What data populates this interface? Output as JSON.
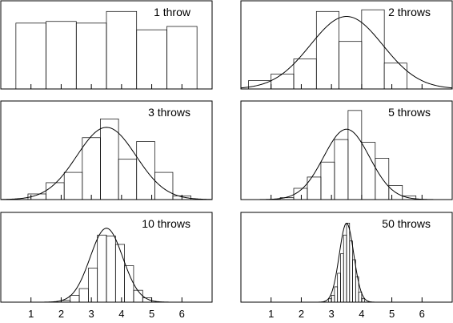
{
  "chart_data": [
    {
      "type": "bar",
      "title": "1 throw",
      "x_range": [
        0,
        7
      ],
      "bin_edges": [
        0.5,
        1.5,
        2.5,
        3.5,
        4.5,
        5.5,
        6.5
      ],
      "values": [
        0.79,
        0.81,
        0.79,
        0.93,
        0.71,
        0.75
      ],
      "ylim": [
        0,
        1.0
      ],
      "fitted_curve": false
    },
    {
      "type": "bar",
      "title": "2 throws",
      "x_range": [
        0,
        7
      ],
      "bin_edges": [
        0.25,
        1.0,
        1.75,
        2.5,
        3.25,
        4.0,
        4.75,
        5.5
      ],
      "values": [
        0.1,
        0.18,
        0.36,
        0.93,
        0.57,
        0.95,
        0.31
      ],
      "ylim": [
        0,
        1.0
      ],
      "fitted_curve": true,
      "curve_mean": 3.5,
      "curve_sd": 1.2,
      "curve_peak": 0.87
    },
    {
      "type": "bar",
      "title": "3 throws",
      "x_range": [
        0,
        7
      ],
      "bin_edges": [
        0.9,
        1.5,
        2.1,
        2.7,
        3.3,
        3.9,
        4.5,
        5.1,
        5.7,
        6.3
      ],
      "values": [
        0.06,
        0.18,
        0.29,
        0.66,
        0.86,
        0.43,
        0.62,
        0.29,
        0.04
      ],
      "ylim": [
        0,
        1.0
      ],
      "fitted_curve": true,
      "curve_mean": 3.5,
      "curve_sd": 0.98,
      "curve_peak": 0.77
    },
    {
      "type": "bar",
      "title": "5 throws",
      "x_range": [
        0,
        7
      ],
      "bin_edges": [
        1.3,
        1.75,
        2.2,
        2.65,
        3.1,
        3.55,
        4.0,
        4.45,
        4.9,
        5.35,
        5.8
      ],
      "values": [
        0.02,
        0.12,
        0.24,
        0.4,
        0.64,
        0.95,
        0.61,
        0.44,
        0.15,
        0.04
      ],
      "ylim": [
        0,
        1.0
      ],
      "fitted_curve": true,
      "curve_mean": 3.5,
      "curve_sd": 0.76,
      "curve_peak": 0.75
    },
    {
      "type": "bar",
      "title": "10 throws",
      "x_range": [
        0,
        7
      ],
      "bin_edges": [
        2.0,
        2.3,
        2.6,
        2.9,
        3.2,
        3.5,
        3.8,
        4.1,
        4.4,
        4.7,
        5.0
      ],
      "values": [
        0.02,
        0.08,
        0.16,
        0.4,
        0.79,
        0.78,
        0.68,
        0.43,
        0.14,
        0.05
      ],
      "ylim": [
        0,
        1.0
      ],
      "fitted_curve": true,
      "curve_mean": 3.5,
      "curve_sd": 0.54,
      "curve_peak": 0.87
    },
    {
      "type": "bar",
      "title": "50 throws",
      "x_range": [
        0,
        7
      ],
      "bin_edges": [
        2.9,
        3.0,
        3.1,
        3.2,
        3.3,
        3.4,
        3.5,
        3.6,
        3.7,
        3.8,
        3.9,
        4.0,
        4.1
      ],
      "values": [
        0.04,
        0.08,
        0.18,
        0.34,
        0.57,
        0.79,
        0.93,
        0.72,
        0.5,
        0.3,
        0.12,
        0.04
      ],
      "ylim": [
        0,
        1.0
      ],
      "fitted_curve": true,
      "curve_mean": 3.5,
      "curve_sd": 0.24,
      "curve_peak": 0.93
    }
  ],
  "shared_x_ticks": [
    1,
    2,
    3,
    4,
    5,
    6
  ]
}
